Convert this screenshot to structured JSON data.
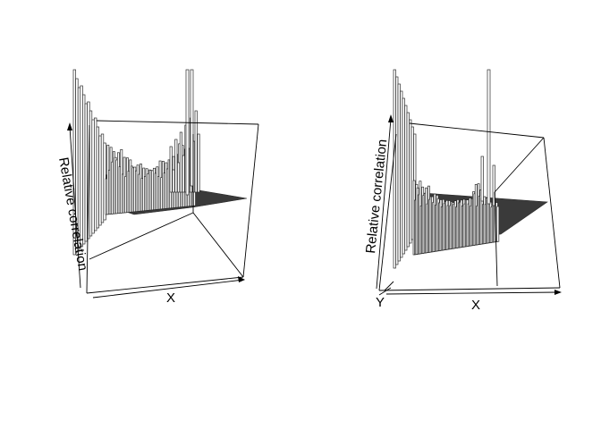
{
  "chart_data": [
    {
      "type": "surface3d",
      "panel": "left",
      "xlabel": "X",
      "ylabel": "",
      "zlabel": "Relative correlation",
      "ticks": false,
      "description_values": {
        "ridge_heights": [
          0.95,
          0.85,
          0.6,
          0.42,
          0.3,
          0.35,
          0.5,
          0.7,
          0.98,
          1.0
        ],
        "floor_level": 0.05
      }
    },
    {
      "type": "surface3d",
      "panel": "right",
      "xlabel": "X",
      "ylabel": "Y",
      "zlabel": "Relative correlation",
      "ticks": false,
      "description_values": {
        "ridge_heights": [
          1.0,
          0.8,
          0.5,
          0.3,
          0.25,
          0.3,
          0.35,
          0.9,
          0.4,
          0.2
        ],
        "floor_level": 0.05
      }
    }
  ]
}
